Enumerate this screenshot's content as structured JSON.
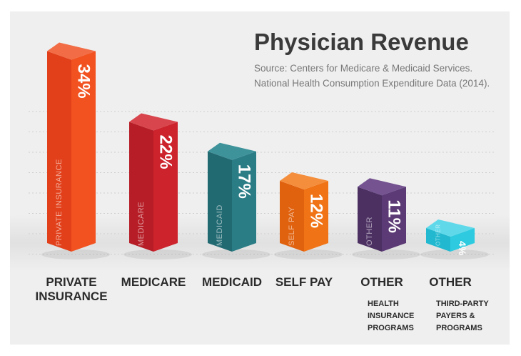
{
  "chart_data": {
    "type": "bar",
    "title": "Physician Revenue",
    "source_lines": [
      "Source: Centers for Medicare & Medicaid Services.",
      "National Health Consumption Expenditure Data (2014)."
    ],
    "bars": [
      {
        "value": 34,
        "value_label": "34%",
        "bar_label": "PRIVATE INSURANCE",
        "category_lines": [
          "PRIVATE",
          "INSURANCE"
        ],
        "sub_lines": [],
        "front": "#e2401a",
        "side": "#f25220",
        "top": "#f26d45"
      },
      {
        "value": 22,
        "value_label": "22%",
        "bar_label": "MEDICARE",
        "category_lines": [
          "MEDICARE"
        ],
        "sub_lines": [],
        "front": "#b61d26",
        "side": "#cc232d",
        "top": "#d9454c"
      },
      {
        "value": 17,
        "value_label": "17%",
        "bar_label": "MEDICAID",
        "category_lines": [
          "MEDICAID"
        ],
        "sub_lines": [],
        "front": "#226a72",
        "side": "#2a7c85",
        "top": "#3e939b"
      },
      {
        "value": 12,
        "value_label": "12%",
        "bar_label": "SELF PAY",
        "category_lines": [
          "SELF PAY"
        ],
        "sub_lines": [],
        "front": "#e0620f",
        "side": "#f07416",
        "top": "#f58e3c"
      },
      {
        "value": 11,
        "value_label": "11%",
        "bar_label": "OTHER",
        "category_lines": [
          "OTHER"
        ],
        "sub_lines": [
          "HEALTH",
          "INSURANCE",
          "PROGRAMS"
        ],
        "front": "#4c3062",
        "side": "#5c3a75",
        "top": "#745390"
      },
      {
        "value": 4,
        "value_label": "4%",
        "bar_label": "OTHER",
        "category_lines": [
          "OTHER"
        ],
        "sub_lines": [
          "THIRD-PARTY",
          "PAYERS &",
          "PROGRAMS"
        ],
        "front": "#22b8cf",
        "side": "#2ecbe0",
        "top": "#5fd9ea"
      }
    ]
  }
}
